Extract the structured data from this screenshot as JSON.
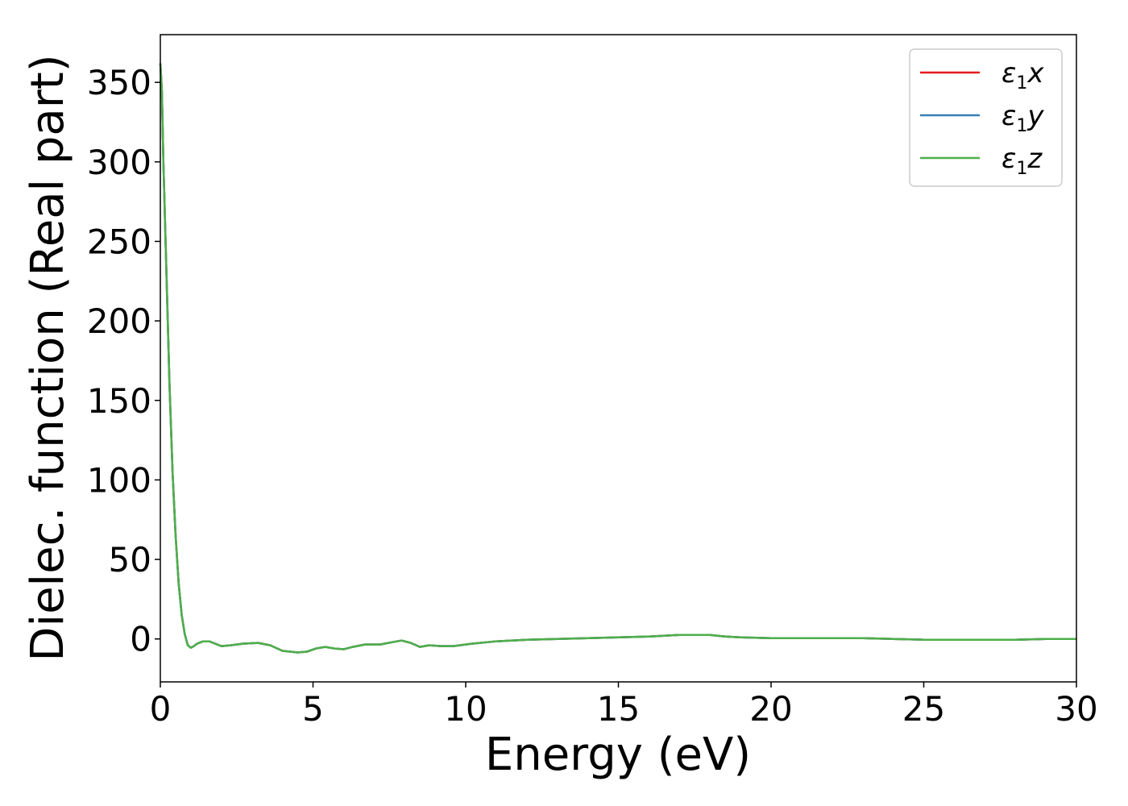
{
  "chart_data": {
    "type": "line",
    "xlabel": "Energy (eV)",
    "ylabel": "Dielec. function (Real part)",
    "xlim": [
      0,
      30
    ],
    "ylim": [
      -27,
      380
    ],
    "xticks": [
      0,
      5,
      10,
      15,
      20,
      25,
      30
    ],
    "yticks": [
      0,
      50,
      100,
      150,
      200,
      250,
      300,
      350
    ],
    "grid": false,
    "legend_position": "top-right",
    "series": [
      {
        "name": "ε1x",
        "symbol": "ε",
        "sub": "1",
        "axis": "x",
        "color": "#e41a1c",
        "points": [
          [
            0,
            362
          ],
          [
            0.05,
            345
          ],
          [
            0.1,
            300
          ],
          [
            0.2,
            230
          ],
          [
            0.3,
            160
          ],
          [
            0.4,
            105
          ],
          [
            0.5,
            65
          ],
          [
            0.6,
            35
          ],
          [
            0.7,
            15
          ],
          [
            0.8,
            3
          ],
          [
            0.9,
            -4
          ],
          [
            1.0,
            -5.5
          ],
          [
            1.1,
            -4.5
          ],
          [
            1.2,
            -3
          ],
          [
            1.4,
            -1.5
          ],
          [
            1.6,
            -1.5
          ],
          [
            1.8,
            -3
          ],
          [
            2.0,
            -4.5
          ],
          [
            2.3,
            -4
          ],
          [
            2.7,
            -3
          ],
          [
            3.2,
            -2.5
          ],
          [
            3.6,
            -4
          ],
          [
            4.0,
            -7.5
          ],
          [
            4.5,
            -8.5
          ],
          [
            4.8,
            -8
          ],
          [
            5.1,
            -6
          ],
          [
            5.4,
            -5
          ],
          [
            5.7,
            -6
          ],
          [
            6.0,
            -6.5
          ],
          [
            6.3,
            -5
          ],
          [
            6.7,
            -3.5
          ],
          [
            7.2,
            -3.5
          ],
          [
            7.6,
            -2
          ],
          [
            7.9,
            -1
          ],
          [
            8.2,
            -2.5
          ],
          [
            8.5,
            -5
          ],
          [
            8.8,
            -4
          ],
          [
            9.2,
            -4.5
          ],
          [
            9.6,
            -4.5
          ],
          [
            10.2,
            -3
          ],
          [
            11.0,
            -1.5
          ],
          [
            12.0,
            -0.5
          ],
          [
            13.0,
            0
          ],
          [
            14.0,
            0.5
          ],
          [
            15.0,
            1
          ],
          [
            16.0,
            1.5
          ],
          [
            17.0,
            2.5
          ],
          [
            18.0,
            2.5
          ],
          [
            18.5,
            1.5
          ],
          [
            19.0,
            1
          ],
          [
            20.0,
            0.5
          ],
          [
            21.0,
            0.5
          ],
          [
            22.0,
            0.5
          ],
          [
            23.0,
            0.5
          ],
          [
            24.0,
            0
          ],
          [
            25.0,
            -0.5
          ],
          [
            26.0,
            -0.5
          ],
          [
            27.0,
            -0.5
          ],
          [
            28.0,
            -0.5
          ],
          [
            29.0,
            0
          ],
          [
            30.0,
            0
          ]
        ]
      },
      {
        "name": "ε1y",
        "symbol": "ε",
        "sub": "1",
        "axis": "y",
        "color": "#377eb8",
        "points": [
          [
            0,
            362
          ],
          [
            0.05,
            345
          ],
          [
            0.1,
            300
          ],
          [
            0.2,
            230
          ],
          [
            0.3,
            160
          ],
          [
            0.4,
            105
          ],
          [
            0.5,
            65
          ],
          [
            0.6,
            35
          ],
          [
            0.7,
            15
          ],
          [
            0.8,
            3
          ],
          [
            0.9,
            -4
          ],
          [
            1.0,
            -5.5
          ],
          [
            1.1,
            -4.5
          ],
          [
            1.2,
            -3
          ],
          [
            1.4,
            -1.5
          ],
          [
            1.6,
            -1.5
          ],
          [
            1.8,
            -3
          ],
          [
            2.0,
            -4.5
          ],
          [
            2.3,
            -4
          ],
          [
            2.7,
            -3
          ],
          [
            3.2,
            -2.5
          ],
          [
            3.6,
            -4
          ],
          [
            4.0,
            -7.5
          ],
          [
            4.5,
            -8.5
          ],
          [
            4.8,
            -8
          ],
          [
            5.1,
            -6
          ],
          [
            5.4,
            -5
          ],
          [
            5.7,
            -6
          ],
          [
            6.0,
            -6.5
          ],
          [
            6.3,
            -5
          ],
          [
            6.7,
            -3.5
          ],
          [
            7.2,
            -3.5
          ],
          [
            7.6,
            -2
          ],
          [
            7.9,
            -1
          ],
          [
            8.2,
            -2.5
          ],
          [
            8.5,
            -5
          ],
          [
            8.8,
            -4
          ],
          [
            9.2,
            -4.5
          ],
          [
            9.6,
            -4.5
          ],
          [
            10.2,
            -3
          ],
          [
            11.0,
            -1.5
          ],
          [
            12.0,
            -0.5
          ],
          [
            13.0,
            0
          ],
          [
            14.0,
            0.5
          ],
          [
            15.0,
            1
          ],
          [
            16.0,
            1.5
          ],
          [
            17.0,
            2.5
          ],
          [
            18.0,
            2.5
          ],
          [
            18.5,
            1.5
          ],
          [
            19.0,
            1
          ],
          [
            20.0,
            0.5
          ],
          [
            21.0,
            0.5
          ],
          [
            22.0,
            0.5
          ],
          [
            23.0,
            0.5
          ],
          [
            24.0,
            0
          ],
          [
            25.0,
            -0.5
          ],
          [
            26.0,
            -0.5
          ],
          [
            27.0,
            -0.5
          ],
          [
            28.0,
            -0.5
          ],
          [
            29.0,
            0
          ],
          [
            30.0,
            0
          ]
        ]
      },
      {
        "name": "ε1z",
        "symbol": "ε",
        "sub": "1",
        "axis": "z",
        "color": "#4daf4a",
        "points": [
          [
            0,
            362
          ],
          [
            0.05,
            345
          ],
          [
            0.1,
            300
          ],
          [
            0.2,
            230
          ],
          [
            0.3,
            160
          ],
          [
            0.4,
            105
          ],
          [
            0.5,
            65
          ],
          [
            0.6,
            35
          ],
          [
            0.7,
            15
          ],
          [
            0.8,
            3
          ],
          [
            0.9,
            -4
          ],
          [
            1.0,
            -5.5
          ],
          [
            1.1,
            -4.5
          ],
          [
            1.2,
            -3
          ],
          [
            1.4,
            -1.5
          ],
          [
            1.6,
            -1.5
          ],
          [
            1.8,
            -3
          ],
          [
            2.0,
            -4.5
          ],
          [
            2.3,
            -4
          ],
          [
            2.7,
            -3
          ],
          [
            3.2,
            -2.5
          ],
          [
            3.6,
            -4
          ],
          [
            4.0,
            -7.5
          ],
          [
            4.5,
            -8.5
          ],
          [
            4.8,
            -8
          ],
          [
            5.1,
            -6
          ],
          [
            5.4,
            -5
          ],
          [
            5.7,
            -6
          ],
          [
            6.0,
            -6.5
          ],
          [
            6.3,
            -5
          ],
          [
            6.7,
            -3.5
          ],
          [
            7.2,
            -3.5
          ],
          [
            7.6,
            -2
          ],
          [
            7.9,
            -1
          ],
          [
            8.2,
            -2.5
          ],
          [
            8.5,
            -5
          ],
          [
            8.8,
            -4
          ],
          [
            9.2,
            -4.5
          ],
          [
            9.6,
            -4.5
          ],
          [
            10.2,
            -3
          ],
          [
            11.0,
            -1.5
          ],
          [
            12.0,
            -0.5
          ],
          [
            13.0,
            0
          ],
          [
            14.0,
            0.5
          ],
          [
            15.0,
            1
          ],
          [
            16.0,
            1.5
          ],
          [
            17.0,
            2.5
          ],
          [
            18.0,
            2.5
          ],
          [
            18.5,
            1.5
          ],
          [
            19.0,
            1
          ],
          [
            20.0,
            0.5
          ],
          [
            21.0,
            0.5
          ],
          [
            22.0,
            0.5
          ],
          [
            23.0,
            0.5
          ],
          [
            24.0,
            0
          ],
          [
            25.0,
            -0.5
          ],
          [
            26.0,
            -0.5
          ],
          [
            27.0,
            -0.5
          ],
          [
            28.0,
            -0.5
          ],
          [
            29.0,
            0
          ],
          [
            30.0,
            0
          ]
        ]
      }
    ]
  }
}
